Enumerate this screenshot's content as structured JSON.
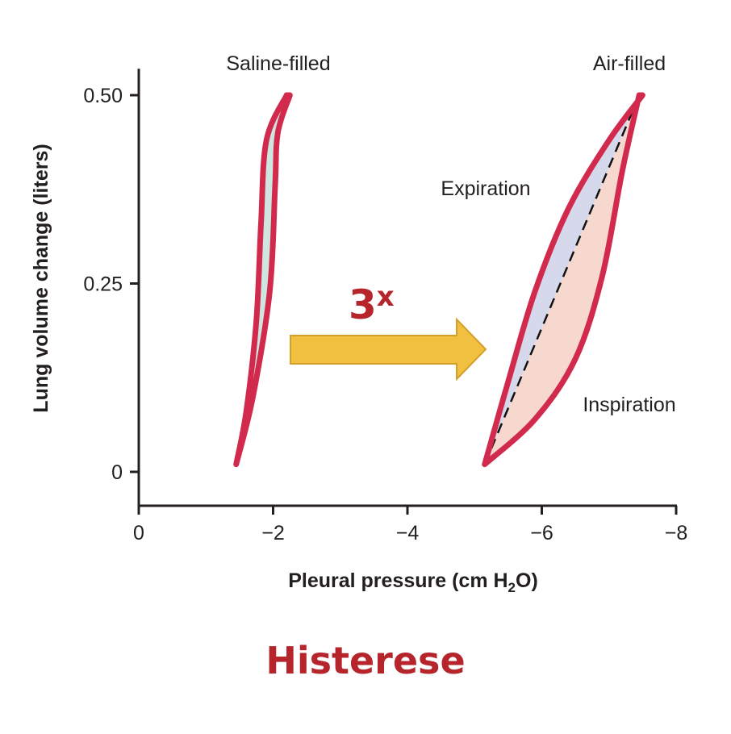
{
  "caption": "Histerese",
  "multiplier": {
    "number": "3",
    "suffix": "x"
  },
  "colors": {
    "outline": "#d22a4d",
    "saline_fill": "#cfe5df",
    "expiration_fill": "#d6d8eb",
    "inspiration_fill": "#f6d8cf",
    "arrow_fill": "#f2c040",
    "arrow_stroke": "#d4a02c",
    "caption": "#b5252b",
    "axis": "#231f20"
  },
  "chart_data": {
    "type": "line",
    "xlabel": "Pleural pressure (cm H₂O)",
    "ylabel": "Lung volume change (liters)",
    "xlim": [
      0,
      -8
    ],
    "ylim": [
      -0.045,
      0.535
    ],
    "x_ticks": [
      {
        "value": 0,
        "label": "0"
      },
      {
        "value": -2,
        "label": "−2"
      },
      {
        "value": -4,
        "label": "−4"
      },
      {
        "value": -6,
        "label": "−6"
      },
      {
        "value": -8,
        "label": "−8"
      }
    ],
    "y_ticks": [
      {
        "value": 0,
        "label": "0"
      },
      {
        "value": 0.25,
        "label": "0.25"
      },
      {
        "value": 0.5,
        "label": "0.50"
      }
    ],
    "grid": false,
    "annotations": {
      "saline": "Saline-filled",
      "air": "Air-filled",
      "expiration": "Expiration",
      "inspiration": "Inspiration"
    },
    "loops": [
      {
        "name": "Saline-filled",
        "expiration": [
          [
            -1.45,
            0.01
          ],
          [
            -1.6,
            0.08
          ],
          [
            -1.75,
            0.2
          ],
          [
            -1.82,
            0.33
          ],
          [
            -1.9,
            0.44
          ],
          [
            -2.2,
            0.5
          ]
        ],
        "inspiration": [
          [
            -1.45,
            0.01
          ],
          [
            -1.7,
            0.1
          ],
          [
            -1.95,
            0.24
          ],
          [
            -2.03,
            0.38
          ],
          [
            -2.07,
            0.45
          ],
          [
            -2.25,
            0.5
          ]
        ]
      },
      {
        "name": "Air-filled",
        "expiration": [
          [
            -5.15,
            0.01
          ],
          [
            -5.5,
            0.12
          ],
          [
            -5.9,
            0.24
          ],
          [
            -6.4,
            0.35
          ],
          [
            -7.0,
            0.44
          ],
          [
            -7.5,
            0.5
          ]
        ],
        "inspiration": [
          [
            -5.15,
            0.01
          ],
          [
            -5.9,
            0.07
          ],
          [
            -6.5,
            0.15
          ],
          [
            -6.9,
            0.26
          ],
          [
            -7.2,
            0.4
          ],
          [
            -7.45,
            0.5
          ]
        ],
        "compliance_line": [
          [
            -5.15,
            0.01
          ],
          [
            -7.45,
            0.5
          ]
        ]
      }
    ]
  }
}
